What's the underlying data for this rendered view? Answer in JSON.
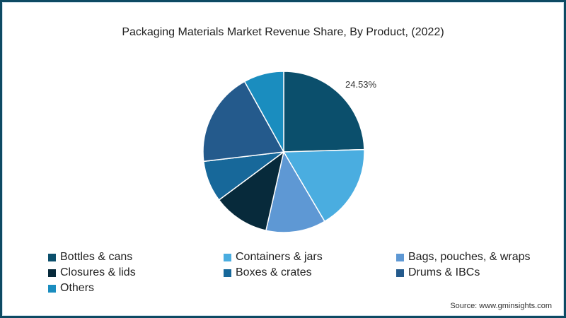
{
  "chart_data": {
    "type": "pie",
    "title": "Packaging Materials Market Revenue Share, By Product, (2022)",
    "slices": [
      {
        "label": "Bottles & cans",
        "value": 24.53,
        "color": "#0b4f6c",
        "data_label": "24.53%"
      },
      {
        "label": "Containers & jars",
        "value": 17.0,
        "color": "#4aade0"
      },
      {
        "label": "Bags, pouches, & wraps",
        "value": 12.0,
        "color": "#5e98d4"
      },
      {
        "label": "Closures & lids",
        "value": 11.3,
        "color": "#072a3b"
      },
      {
        "label": "Boxes & crates",
        "value": 8.3,
        "color": "#17689a"
      },
      {
        "label": "Drums & IBCs",
        "value": 18.8,
        "color": "#245a8c"
      },
      {
        "label": "Others",
        "value": 8.07,
        "color": "#1a8dbf"
      }
    ],
    "legend_position": "bottom"
  },
  "source": "Source: www.gminsights.com"
}
